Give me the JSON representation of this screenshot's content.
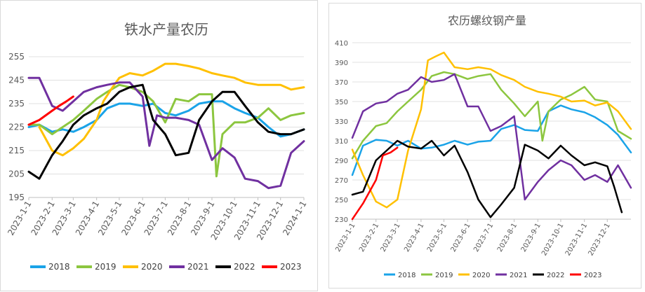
{
  "chart_data": [
    {
      "type": "line",
      "title": "铁水产量农历",
      "xlabel": "",
      "ylabel": "",
      "ylim": [
        195,
        255
      ],
      "yticks": [
        195,
        205,
        215,
        225,
        235,
        245,
        255
      ],
      "xlim": [
        "2023-1-1",
        "2024-1-1"
      ],
      "xticks": [
        "2023-1-1",
        "2023-2-1",
        "2023-3-1",
        "2023-4-1",
        "2023-5-1",
        "2023-6-1",
        "2023-7-1",
        "2023-8-1",
        "2023-9-1",
        "2023-10-1",
        "2023-11-1",
        "2023-12-1",
        "2024-1-1"
      ],
      "grid": "horizontal",
      "legend": "bottom",
      "series": [
        {
          "name": "2018",
          "color": "#1aa3e8",
          "x": [
            "2023-1-1",
            "2023-1-15",
            "2023-2-1",
            "2023-2-15",
            "2023-3-1",
            "2023-3-15",
            "2023-4-1",
            "2023-4-15",
            "2023-5-1",
            "2023-5-15",
            "2023-6-1",
            "2023-6-15",
            "2023-7-1",
            "2023-7-15",
            "2023-8-1",
            "2023-8-15",
            "2023-9-1",
            "2023-9-15",
            "2023-10-1",
            "2023-10-15",
            "2023-11-1",
            "2023-11-15",
            "2023-12-1",
            "2023-12-15",
            "2024-1-1"
          ],
          "values": [
            225,
            226,
            223,
            224,
            223,
            225,
            228,
            233,
            235,
            235,
            234,
            235,
            231,
            230,
            232,
            235,
            236,
            236,
            233,
            231,
            229,
            225,
            221,
            222,
            224
          ]
        },
        {
          "name": "2019",
          "color": "#8cc63f",
          "x": [
            "2023-1-1",
            "2023-1-15",
            "2023-2-1",
            "2023-2-15",
            "2023-3-1",
            "2023-3-15",
            "2023-4-1",
            "2023-4-15",
            "2023-5-1",
            "2023-5-15",
            "2023-6-1",
            "2023-6-15",
            "2023-7-1",
            "2023-7-15",
            "2023-8-1",
            "2023-8-15",
            "2023-9-1",
            "2023-9-7",
            "2023-9-15",
            "2023-10-1",
            "2023-10-15",
            "2023-11-1",
            "2023-11-15",
            "2023-12-1",
            "2023-12-15",
            "2024-1-1"
          ],
          "values": [
            226,
            226,
            222,
            225,
            228,
            232,
            237,
            240,
            243,
            242,
            240,
            236,
            227,
            237,
            236,
            239,
            239,
            204,
            222,
            227,
            227,
            229,
            233,
            228,
            230,
            231
          ]
        },
        {
          "name": "2020",
          "color": "#ffc000",
          "x": [
            "2023-1-15",
            "2023-2-1",
            "2023-2-15",
            "2023-3-1",
            "2023-3-15",
            "2023-4-1",
            "2023-4-10",
            "2023-4-20",
            "2023-5-1",
            "2023-5-15",
            "2023-6-1",
            "2023-6-15",
            "2023-7-1",
            "2023-7-15",
            "2023-8-1",
            "2023-8-15",
            "2023-9-1",
            "2023-9-15",
            "2023-10-1",
            "2023-10-15",
            "2023-11-1",
            "2023-11-15",
            "2023-12-1",
            "2023-12-15",
            "2024-1-1"
          ],
          "values": [
            225,
            215,
            213,
            216,
            220,
            228,
            236,
            241,
            246,
            248,
            247,
            249,
            252,
            252,
            251,
            250,
            248,
            247,
            246,
            244,
            243,
            243,
            243,
            241,
            242
          ]
        },
        {
          "name": "2021",
          "color": "#7030a0",
          "x": [
            "2023-1-1",
            "2023-1-15",
            "2023-2-1",
            "2023-2-15",
            "2023-3-1",
            "2023-3-15",
            "2023-4-1",
            "2023-4-15",
            "2023-5-1",
            "2023-5-15",
            "2023-6-1",
            "2023-6-10",
            "2023-6-20",
            "2023-7-1",
            "2023-7-15",
            "2023-8-1",
            "2023-8-15",
            "2023-9-1",
            "2023-9-15",
            "2023-10-1",
            "2023-10-15",
            "2023-11-1",
            "2023-11-15",
            "2023-12-1",
            "2023-12-15",
            "2024-1-1"
          ],
          "values": [
            246,
            246,
            234,
            232,
            236,
            240,
            242,
            243,
            244,
            244,
            238,
            217,
            230,
            229,
            229,
            228,
            226,
            211,
            216,
            212,
            203,
            202,
            199,
            200,
            214,
            219
          ]
        },
        {
          "name": "2022",
          "color": "#000000",
          "x": [
            "2023-1-1",
            "2023-1-15",
            "2023-2-1",
            "2023-2-15",
            "2023-3-1",
            "2023-3-15",
            "2023-4-1",
            "2023-4-15",
            "2023-5-1",
            "2023-5-15",
            "2023-6-1",
            "2023-6-15",
            "2023-7-1",
            "2023-7-15",
            "2023-8-1",
            "2023-8-15",
            "2023-9-1",
            "2023-9-15",
            "2023-10-1",
            "2023-10-15",
            "2023-11-1",
            "2023-11-15",
            "2023-12-1",
            "2023-12-15",
            "2024-1-1"
          ],
          "values": [
            206,
            203,
            213,
            219,
            226,
            230,
            233,
            235,
            240,
            242,
            243,
            228,
            222,
            213,
            214,
            228,
            236,
            240,
            240,
            234,
            227,
            223,
            222,
            222,
            224
          ]
        },
        {
          "name": "2023",
          "color": "#ff0000",
          "x": [
            "2023-1-1",
            "2023-1-15",
            "2023-2-1",
            "2023-2-10",
            "2023-2-20",
            "2023-3-1"
          ],
          "values": [
            226,
            228,
            232,
            234,
            236,
            238
          ]
        }
      ]
    },
    {
      "type": "line",
      "title": "农历螺纹钢产量",
      "xlabel": "",
      "ylabel": "",
      "ylim": [
        230,
        410
      ],
      "yticks": [
        230,
        250,
        270,
        290,
        310,
        330,
        350,
        370,
        390,
        410
      ],
      "xlim": [
        "2023-1-1",
        "2024-1-1"
      ],
      "xticks": [
        "2023-1-1",
        "2023-2-1",
        "2023-3-1",
        "2023-4-1",
        "2023-5-1",
        "2023-6-1",
        "2023-7-1",
        "2023-8-1",
        "2023-9-1",
        "2023-10-1",
        "2023-11-1",
        "2023-12-1"
      ],
      "grid": "horizontal",
      "legend": "bottom",
      "series": [
        {
          "name": "2018",
          "color": "#1aa3e8",
          "x": [
            "2023-1-1",
            "2023-1-15",
            "2023-2-1",
            "2023-2-15",
            "2023-3-1",
            "2023-3-15",
            "2023-4-1",
            "2023-4-15",
            "2023-5-1",
            "2023-5-15",
            "2023-6-1",
            "2023-6-15",
            "2023-7-1",
            "2023-7-15",
            "2023-8-1",
            "2023-8-15",
            "2023-9-1",
            "2023-9-15",
            "2023-10-1",
            "2023-10-15",
            "2023-11-1",
            "2023-11-15",
            "2023-12-1",
            "2023-12-15",
            "2024-1-1"
          ],
          "values": [
            275,
            305,
            311,
            310,
            305,
            310,
            302,
            303,
            306,
            310,
            306,
            309,
            310,
            322,
            326,
            321,
            320,
            340,
            346,
            342,
            339,
            334,
            326,
            316,
            298
          ]
        },
        {
          "name": "2019",
          "color": "#8cc63f",
          "x": [
            "2023-1-1",
            "2023-1-15",
            "2023-2-1",
            "2023-2-15",
            "2023-3-1",
            "2023-3-15",
            "2023-4-1",
            "2023-4-15",
            "2023-5-1",
            "2023-5-15",
            "2023-6-1",
            "2023-6-15",
            "2023-7-1",
            "2023-7-15",
            "2023-8-1",
            "2023-8-15",
            "2023-9-1",
            "2023-9-7",
            "2023-9-15",
            "2023-10-1",
            "2023-10-15",
            "2023-11-1",
            "2023-11-15",
            "2023-12-1",
            "2023-12-15",
            "2024-1-1"
          ],
          "values": [
            292,
            310,
            325,
            328,
            340,
            350,
            362,
            376,
            380,
            378,
            373,
            376,
            378,
            362,
            348,
            335,
            350,
            310,
            340,
            352,
            357,
            365,
            352,
            350,
            320,
            312
          ]
        },
        {
          "name": "2020",
          "color": "#ffc000",
          "x": [
            "2023-1-1",
            "2023-1-15",
            "2023-2-1",
            "2023-2-15",
            "2023-3-1",
            "2023-3-15",
            "2023-4-1",
            "2023-4-10",
            "2023-4-20",
            "2023-5-1",
            "2023-5-15",
            "2023-6-1",
            "2023-6-15",
            "2023-7-1",
            "2023-7-15",
            "2023-8-1",
            "2023-8-15",
            "2023-9-1",
            "2023-9-15",
            "2023-10-1",
            "2023-10-15",
            "2023-11-1",
            "2023-11-15",
            "2023-12-1",
            "2023-12-15",
            "2024-1-1"
          ],
          "values": [
            301,
            275,
            248,
            242,
            250,
            300,
            342,
            392,
            396,
            400,
            385,
            383,
            385,
            383,
            377,
            372,
            365,
            360,
            358,
            355,
            350,
            351,
            346,
            349,
            340,
            322
          ]
        },
        {
          "name": "2021",
          "color": "#7030a0",
          "x": [
            "2023-1-1",
            "2023-1-15",
            "2023-2-1",
            "2023-2-15",
            "2023-3-1",
            "2023-3-15",
            "2023-4-1",
            "2023-4-15",
            "2023-5-1",
            "2023-5-15",
            "2023-6-1",
            "2023-6-15",
            "2023-7-1",
            "2023-7-15",
            "2023-8-1",
            "2023-8-15",
            "2023-9-1",
            "2023-9-15",
            "2023-10-1",
            "2023-10-15",
            "2023-11-1",
            "2023-11-15",
            "2023-12-1",
            "2023-12-15",
            "2024-1-1"
          ],
          "values": [
            313,
            340,
            348,
            350,
            358,
            362,
            375,
            370,
            372,
            378,
            345,
            345,
            320,
            325,
            335,
            250,
            268,
            280,
            290,
            285,
            270,
            275,
            268,
            285,
            262
          ]
        },
        {
          "name": "2022",
          "color": "#000000",
          "x": [
            "2023-1-1",
            "2023-1-15",
            "2023-2-1",
            "2023-2-15",
            "2023-3-1",
            "2023-3-15",
            "2023-4-1",
            "2023-4-15",
            "2023-5-1",
            "2023-5-15",
            "2023-6-1",
            "2023-6-15",
            "2023-7-1",
            "2023-7-15",
            "2023-8-1",
            "2023-8-15",
            "2023-9-1",
            "2023-9-15",
            "2023-10-1",
            "2023-10-15",
            "2023-11-1",
            "2023-11-15",
            "2023-12-1",
            "2023-12-10",
            "2023-12-20"
          ],
          "values": [
            255,
            258,
            290,
            300,
            310,
            304,
            302,
            310,
            295,
            305,
            278,
            250,
            232,
            245,
            262,
            306,
            300,
            292,
            305,
            295,
            285,
            288,
            284,
            263,
            237
          ]
        },
        {
          "name": "2023",
          "color": "#ff0000",
          "x": [
            "2023-1-1",
            "2023-1-15",
            "2023-2-1",
            "2023-2-10",
            "2023-2-20",
            "2023-3-1"
          ],
          "values": [
            230,
            246,
            270,
            295,
            298,
            303
          ]
        }
      ]
    }
  ]
}
